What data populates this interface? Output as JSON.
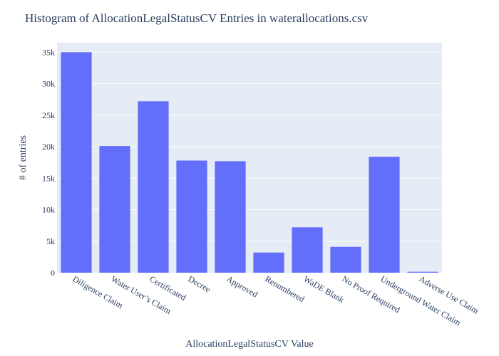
{
  "chart_data": {
    "type": "bar",
    "title": "Histogram of AllocationLegalStatusCV Entries in waterallocations.csv",
    "xlabel": "AllocationLegalStatusCV Value",
    "ylabel": "# of entries",
    "categories": [
      "Diligence Claim",
      "Water User’s Claim",
      "Certificated",
      "Decree",
      "Approved",
      "Renumbered",
      "WaDE Blank",
      "No Proof Required",
      "Underground Water Claim",
      "Adverse Use Claim"
    ],
    "values": [
      35000,
      20100,
      27200,
      17800,
      17700,
      3200,
      7200,
      4100,
      18400,
      150
    ],
    "ylim": [
      0,
      36500
    ],
    "yticks": [
      0,
      5000,
      10000,
      15000,
      20000,
      25000,
      30000,
      35000
    ],
    "ytick_labels": [
      "0",
      "5k",
      "10k",
      "15k",
      "20k",
      "25k",
      "30k",
      "35k"
    ],
    "grid": true,
    "bar_color": "#636efa",
    "plot_bg": "#e5ecf6"
  }
}
